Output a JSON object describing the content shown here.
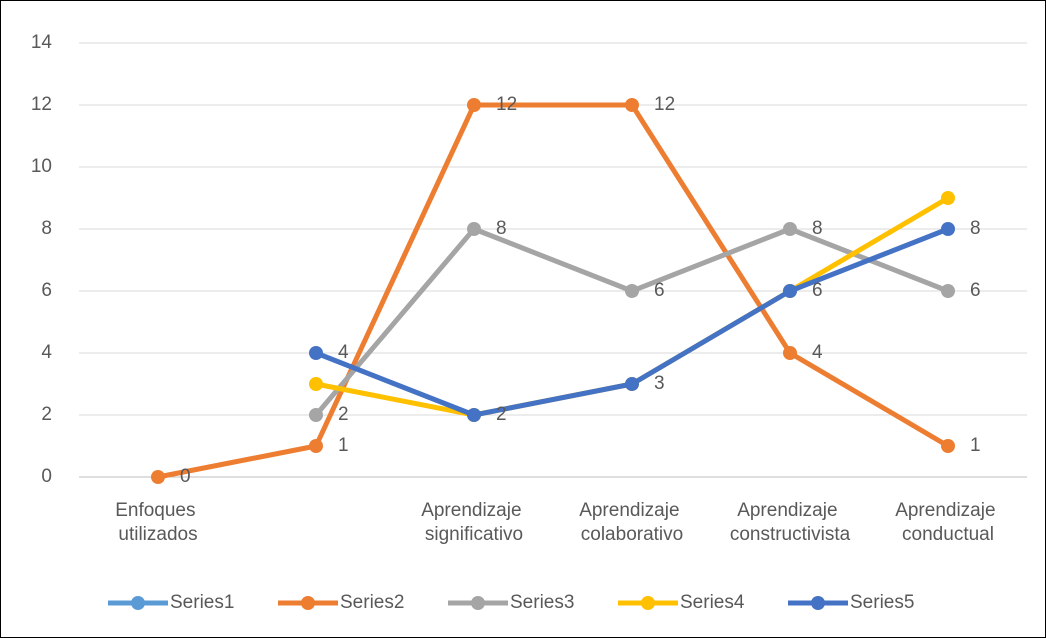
{
  "chart_data": {
    "type": "line",
    "categories": [
      "Enfoques utilizados",
      null,
      "Aprendizaje significativo",
      "Aprendizaje colaborativo",
      "Aprendizaje constructivista",
      "Aprendizaje conductual"
    ],
    "series": [
      {
        "name": "Series1",
        "color": "#5b9bd5",
        "values": [
          null,
          null,
          null,
          null,
          null,
          null
        ],
        "labels": false
      },
      {
        "name": "Series2",
        "color": "#ed7d31",
        "values": [
          0,
          1,
          12,
          12,
          4,
          1
        ],
        "labels": true
      },
      {
        "name": "Series3",
        "color": "#a5a5a5",
        "values": [
          null,
          2,
          8,
          6,
          8,
          6
        ],
        "labels": true
      },
      {
        "name": "Series4",
        "color": "#ffc000",
        "values": [
          null,
          3,
          2,
          3,
          6,
          9
        ],
        "labels": false
      },
      {
        "name": "Series5",
        "color": "#4472c4",
        "values": [
          null,
          4,
          2,
          3,
          6,
          8
        ],
        "labels": true
      }
    ],
    "ylim": [
      0,
      14
    ],
    "yticks": [
      0,
      2,
      4,
      6,
      8,
      10,
      12,
      14
    ],
    "grid": true,
    "legend": "bottom"
  }
}
